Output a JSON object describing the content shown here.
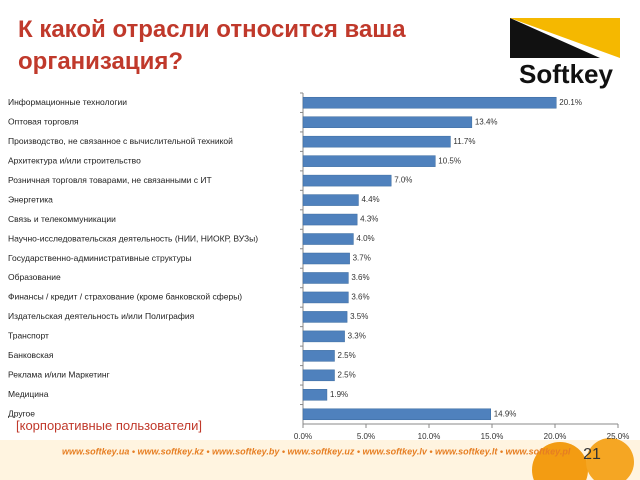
{
  "chart_data": {
    "type": "bar",
    "orientation": "horizontal",
    "title": "К какой отрасли относится ваша организация?",
    "categories": [
      "Информационные технологии",
      "Оптовая торговля",
      "Производство, не связанное с вычислительной техникой",
      "Архитектура и/или строительство",
      "Розничная торговля товарами, не связанными с ИТ",
      "Энергетика",
      "Связь и телекоммуникации",
      "Научно-исследовательская деятельность (НИИ, НИОКР, ВУЗы)",
      "Государственно-административные структуры",
      "Образование",
      "Финансы / кредит / страхование (кроме банковской сферы)",
      "Издательская деятельность и/или Полиграфия",
      "Транспорт",
      "Банковская",
      "Реклама и/или Маркетинг",
      "Медицина",
      "Другое"
    ],
    "values": [
      20.1,
      13.4,
      11.7,
      10.5,
      7.0,
      4.4,
      4.3,
      4.0,
      3.7,
      3.6,
      3.6,
      3.5,
      3.3,
      2.5,
      2.5,
      1.9,
      14.9
    ],
    "value_labels": [
      "20.1%",
      "13.4%",
      "11.7%",
      "10.5%",
      "7.0%",
      "4.4%",
      "4.3%",
      "4.0%",
      "3.7%",
      "3.6%",
      "3.6%",
      "3.5%",
      "3.3%",
      "2.5%",
      "2.5%",
      "1.9%",
      "14.9%"
    ],
    "color": "#4f81bd",
    "xlim": [
      0,
      25
    ],
    "xticks": [
      {
        "value": 0,
        "label": "0.0%"
      },
      {
        "value": 5,
        "label": "5.0%"
      },
      {
        "value": 10,
        "label": "10.0%"
      },
      {
        "value": 15,
        "label": "15.0%"
      },
      {
        "value": 20,
        "label": "20.0%"
      },
      {
        "value": 25,
        "label": "25.0%"
      }
    ],
    "grid": false
  },
  "slide": {
    "logo": "Softkey",
    "note": "[корпоративные пользователи]",
    "page_number": "21",
    "footer_links": "www.softkey.ua • www.softkey.kz • www.softkey.by • www.softkey.uz • www.softkey.lv • www.softkey.lt • www.softkey.pl"
  }
}
